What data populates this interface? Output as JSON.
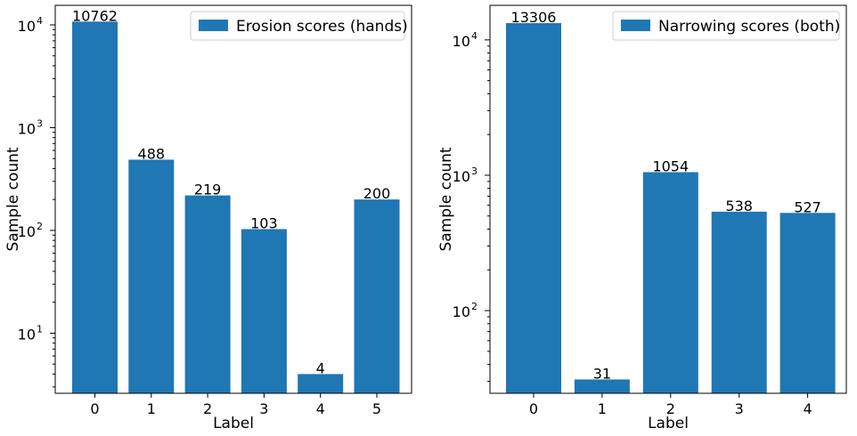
{
  "chart_data": [
    {
      "type": "bar",
      "categories": [
        "0",
        "1",
        "2",
        "3",
        "4",
        "5"
      ],
      "series": [
        {
          "name": "Erosion scores (hands)",
          "values": [
            10762,
            488,
            219,
            103,
            4,
            200
          ],
          "color": "#1f77b4"
        }
      ],
      "data_labels": [
        "10762",
        "488",
        "219",
        "103",
        "4",
        "200"
      ],
      "title": "",
      "xlabel": "Label",
      "ylabel": "Sample count",
      "yscale": "log",
      "ylim": [
        2.6,
        15500
      ],
      "yticks": [
        {
          "value": 10,
          "label": "10",
          "exp": "1"
        },
        {
          "value": 100,
          "label": "10",
          "exp": "2"
        },
        {
          "value": 1000,
          "label": "10",
          "exp": "3"
        },
        {
          "value": 10000,
          "label": "10",
          "exp": "4"
        }
      ],
      "legend_position": "top-right",
      "grid": false
    },
    {
      "type": "bar",
      "categories": [
        "0",
        "1",
        "2",
        "3",
        "4"
      ],
      "series": [
        {
          "name": "Narrowing scores (both)",
          "values": [
            13306,
            31,
            1054,
            538,
            527
          ],
          "color": "#1f77b4"
        }
      ],
      "data_labels": [
        "13306",
        "31",
        "1054",
        "538",
        "527"
      ],
      "title": "",
      "xlabel": "Label",
      "ylabel": "Sample count",
      "yscale": "log",
      "ylim": [
        24.5,
        18000
      ],
      "yticks": [
        {
          "value": 100,
          "label": "10",
          "exp": "2"
        },
        {
          "value": 1000,
          "label": "10",
          "exp": "3"
        },
        {
          "value": 10000,
          "label": "10",
          "exp": "4"
        }
      ],
      "legend_position": "top-right",
      "grid": false
    }
  ]
}
